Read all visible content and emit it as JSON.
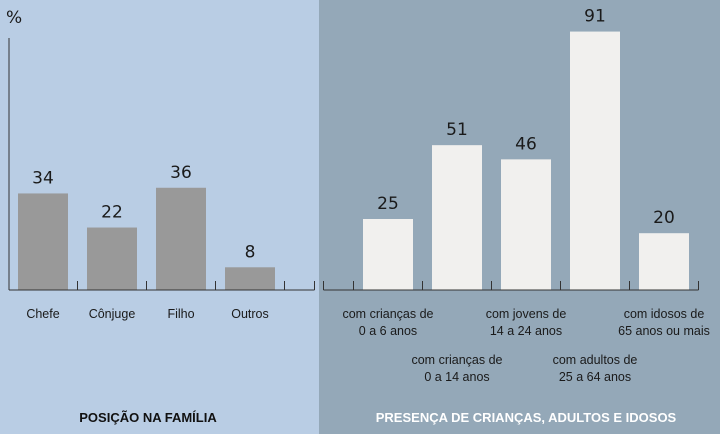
{
  "chart_data": {
    "type": "bar",
    "unit_label": "%",
    "ylim": [
      0,
      100
    ],
    "grid": false,
    "legend": "none",
    "groups": [
      {
        "title": "POSIÇÃO NA FAMÍLIA",
        "color": "#999999",
        "categories": [
          [
            "Chefe"
          ],
          [
            "Cônjuge"
          ],
          [
            "Filho"
          ],
          [
            "Outros"
          ]
        ],
        "values": [
          34,
          22,
          36,
          8
        ]
      },
      {
        "title": "PRESENÇA DE CRIANÇAS, ADULTOS E IDOSOS",
        "color": "#f1f0ee",
        "categories": [
          [
            "com crianças de",
            "0 a 6 anos"
          ],
          [
            "com crianças de",
            "0 a 14 anos"
          ],
          [
            "com jovens de",
            "14 a 24 anos"
          ],
          [
            "com adultos de",
            "25 a 64 anos"
          ],
          [
            "com idosos de",
            "65 anos ou mais"
          ]
        ],
        "values": [
          25,
          51,
          46,
          91,
          20
        ]
      }
    ]
  }
}
